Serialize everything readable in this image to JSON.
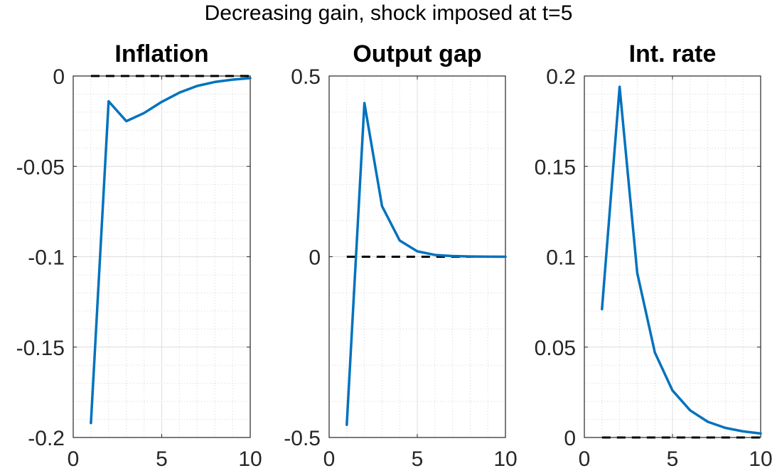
{
  "figure": {
    "title": "Decreasing gain, shock imposed at t=5"
  },
  "chart_data": [
    {
      "type": "line",
      "title": "Inflation",
      "x": [
        1,
        2,
        3,
        4,
        5,
        6,
        7,
        8,
        9,
        10
      ],
      "series": [
        {
          "values": [
            -0.192,
            -0.014,
            -0.025,
            -0.0205,
            -0.0143,
            -0.0092,
            -0.0055,
            -0.0033,
            -0.002,
            -0.0012
          ]
        }
      ],
      "reference_line": {
        "y": 0,
        "style": "dashed",
        "color": "#000000"
      },
      "xlim": [
        0,
        10
      ],
      "ylim": [
        -0.2,
        0
      ],
      "xticks": [
        0,
        5,
        10
      ],
      "xtick_labels": [
        "0",
        "5",
        "10"
      ],
      "yticks": [
        -0.2,
        -0.15,
        -0.1,
        -0.05,
        0
      ],
      "ytick_labels": [
        "-0.2",
        "-0.15",
        "-0.1",
        "-0.05",
        "0"
      ],
      "grid": "on",
      "minor_grid": "on",
      "line_color": "#0072BD"
    },
    {
      "type": "line",
      "title": "Output gap",
      "x": [
        1,
        2,
        3,
        4,
        5,
        6,
        7,
        8,
        9,
        10
      ],
      "series": [
        {
          "values": [
            -0.465,
            0.425,
            0.14,
            0.045,
            0.015,
            0.005,
            0.002,
            0.0008,
            0.0003,
            0.0001
          ]
        }
      ],
      "reference_line": {
        "y": 0,
        "style": "dashed",
        "color": "#000000"
      },
      "xlim": [
        0,
        10
      ],
      "ylim": [
        -0.5,
        0.5
      ],
      "xticks": [
        0,
        5,
        10
      ],
      "xtick_labels": [
        "0",
        "5",
        "10"
      ],
      "yticks": [
        -0.5,
        0,
        0.5
      ],
      "ytick_labels": [
        "-0.5",
        "0",
        "0.5"
      ],
      "grid": "on",
      "minor_grid": "on",
      "line_color": "#0072BD"
    },
    {
      "type": "line",
      "title": "Int. rate",
      "x": [
        1,
        2,
        3,
        4,
        5,
        6,
        7,
        8,
        9,
        10
      ],
      "series": [
        {
          "values": [
            0.071,
            0.194,
            0.091,
            0.047,
            0.026,
            0.015,
            0.0087,
            0.0053,
            0.0034,
            0.0022
          ]
        }
      ],
      "reference_line": {
        "y": 0,
        "style": "dashed",
        "color": "#000000"
      },
      "xlim": [
        0,
        10
      ],
      "ylim": [
        0,
        0.2
      ],
      "xticks": [
        0,
        5,
        10
      ],
      "xtick_labels": [
        "0",
        "5",
        "10"
      ],
      "yticks": [
        0,
        0.05,
        0.1,
        0.15,
        0.2
      ],
      "ytick_labels": [
        "0",
        "0.05",
        "0.1",
        "0.15",
        "0.2"
      ],
      "grid": "on",
      "minor_grid": "on",
      "line_color": "#0072BD"
    }
  ]
}
